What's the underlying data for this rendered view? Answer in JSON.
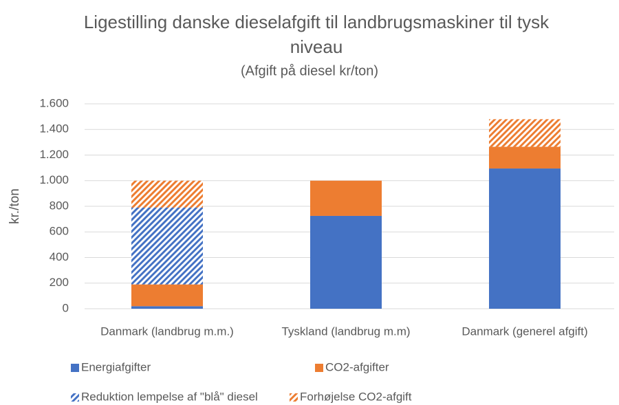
{
  "chart_data": {
    "type": "stacked_bar",
    "title": "Ligestilling danske dieselafgift til landbrugsmaskiner til tysk niveau",
    "subtitle": "(Afgift på diesel kr/ton)",
    "ylabel": "kr./ton",
    "categories": [
      "Danmark (landbrug m.m.)",
      "Tyskland (landbrug m.m)",
      "Danmark (generel afgift)"
    ],
    "series": [
      {
        "name": "Energiafgifter",
        "color": "#4472c4",
        "hatch": false,
        "values": [
          20,
          725,
          1095
        ]
      },
      {
        "name": "CO2-afgifter",
        "color": "#ed7d31",
        "hatch": false,
        "values": [
          170,
          275,
          170
        ]
      },
      {
        "name": "Reduktion lempelse af \"blå\" diesel",
        "color": "#4472c4",
        "hatch": true,
        "values": [
          600,
          null,
          null
        ]
      },
      {
        "name": "Forhøjelse CO2-afgift",
        "color": "#ed7d31",
        "hatch": true,
        "values": [
          210,
          null,
          215
        ]
      }
    ],
    "ylim": [
      0,
      1600
    ],
    "yticks": [
      0,
      200,
      400,
      600,
      800,
      {
        "value": 1000,
        "label": "1.000"
      },
      {
        "value": 1200,
        "label": "1.200"
      },
      {
        "value": 1400,
        "label": "1.400"
      },
      {
        "value": 1600,
        "label": "1.600"
      }
    ],
    "grid": true,
    "legend": "bottom"
  }
}
